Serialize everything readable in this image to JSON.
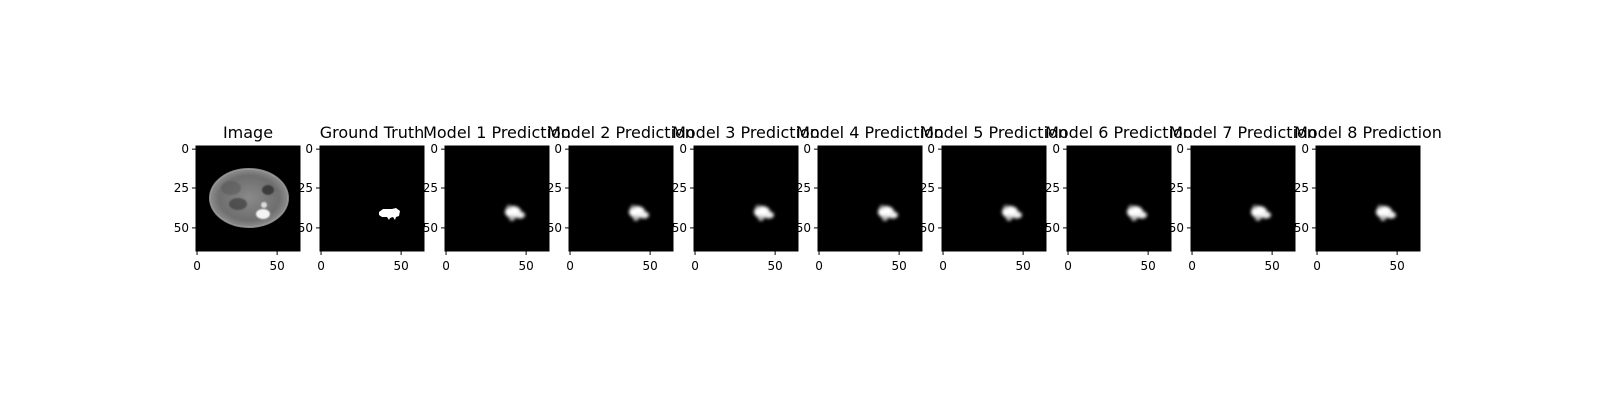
{
  "panels": [
    {
      "title": "Image",
      "kind": "mri"
    },
    {
      "title": "Ground Truth",
      "kind": "mask"
    },
    {
      "title": "Model 1 Prediction",
      "kind": "pred"
    },
    {
      "title": "Model 2 Prediction",
      "kind": "pred"
    },
    {
      "title": "Model 3 Prediction",
      "kind": "pred"
    },
    {
      "title": "Model 4 Prediction",
      "kind": "pred"
    },
    {
      "title": "Model 5 Prediction",
      "kind": "pred"
    },
    {
      "title": "Model 6 Prediction",
      "kind": "pred"
    },
    {
      "title": "Model 7 Prediction",
      "kind": "pred"
    },
    {
      "title": "Model 8 Prediction",
      "kind": "pred"
    }
  ],
  "axes": {
    "xticks": [
      "0",
      "50"
    ],
    "yticks": [
      "0",
      "25",
      "50"
    ]
  }
}
